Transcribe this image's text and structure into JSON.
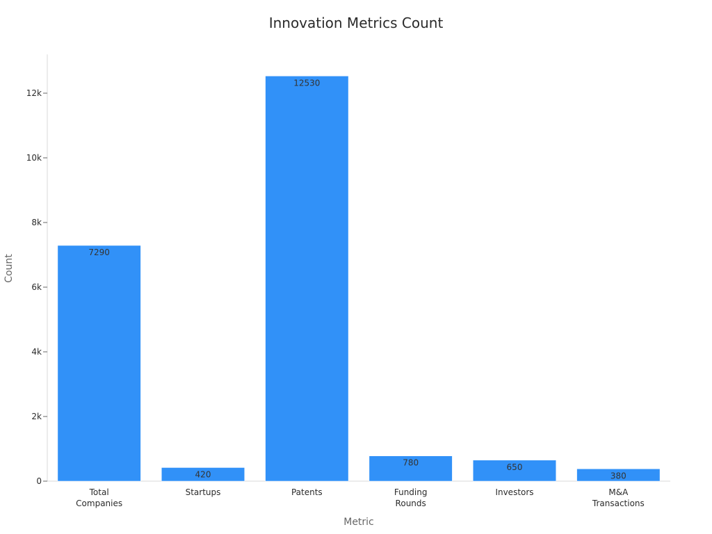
{
  "chart_data": {
    "type": "bar",
    "title": "Innovation Metrics Count",
    "xlabel": "Metric",
    "ylabel": "Count",
    "categories": [
      [
        "Total",
        "Companies"
      ],
      [
        "Startups"
      ],
      [
        "Patents"
      ],
      [
        "Funding",
        "Rounds"
      ],
      [
        "Investors"
      ],
      [
        "M&A",
        "Transactions"
      ]
    ],
    "values": [
      7290,
      420,
      12530,
      780,
      650,
      380
    ],
    "ylim": [
      0,
      13200
    ],
    "yticks": [
      0,
      2000,
      4000,
      6000,
      8000,
      10000,
      12000
    ],
    "ytick_labels": [
      "0",
      "2k",
      "4k",
      "6k",
      "8k",
      "10k",
      "12k"
    ],
    "bar_color": "#3191f8",
    "grid": false,
    "legend": "none"
  }
}
